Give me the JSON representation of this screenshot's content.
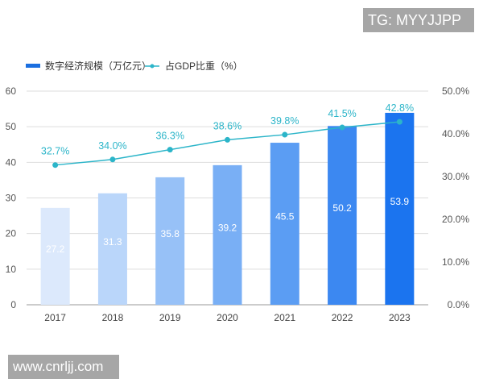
{
  "watermarks": {
    "top": "TG: MYYJJPP",
    "bottom": "www.cnrljj.com"
  },
  "chart_data": {
    "type": "bar+line",
    "categories": [
      "2017",
      "2018",
      "2019",
      "2020",
      "2021",
      "2022",
      "2023"
    ],
    "series": [
      {
        "name": "数字经济规模（万亿元）",
        "type": "bar",
        "axis": "left",
        "values": [
          27.2,
          31.3,
          35.8,
          39.2,
          45.5,
          50.2,
          53.9
        ],
        "labels": [
          "27.2",
          "31.3",
          "35.8",
          "39.2",
          "45.5",
          "50.2",
          "53.9"
        ],
        "colors": [
          "#dce9fc",
          "#bad6fa",
          "#97c1f7",
          "#79aff5",
          "#5b9df3",
          "#3c88f1",
          "#1b74ef"
        ]
      },
      {
        "name": "占GDP比重（%）",
        "type": "line",
        "axis": "right",
        "values": [
          32.7,
          34.0,
          36.3,
          38.6,
          39.8,
          41.5,
          42.8
        ],
        "labels": [
          "32.7%",
          "34.0%",
          "36.3%",
          "38.6%",
          "39.8%",
          "41.5%",
          "42.8%"
        ],
        "color": "#2cb5c9"
      }
    ],
    "left_axis": {
      "ylim": [
        0,
        60
      ],
      "ticks": [
        "0",
        "10",
        "20",
        "30",
        "40",
        "50",
        "60"
      ]
    },
    "right_axis": {
      "ylim": [
        0,
        50
      ],
      "ticks": [
        "0.0%",
        "10.0%",
        "20.0%",
        "30.0%",
        "40.0%",
        "50.0%"
      ]
    },
    "legend_position": "top-left",
    "grid": true,
    "legend_bar_color": "#1b6fe0"
  }
}
